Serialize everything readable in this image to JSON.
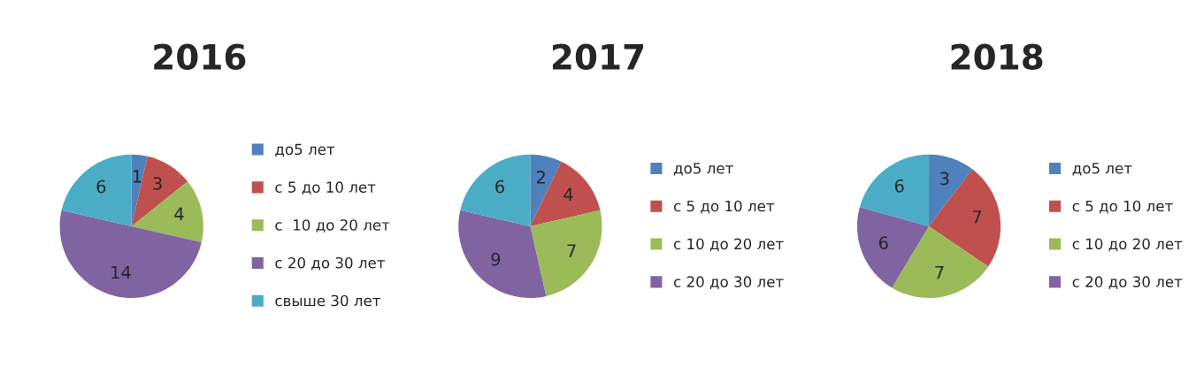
{
  "chart_data": [
    {
      "type": "pie",
      "title": "2016",
      "categories": [
        "до5 лет",
        "с 5 до 10 лет",
        "с  10 до 20 лет",
        "с 20 до 30 лет",
        "свыше 30 лет"
      ],
      "values": [
        1,
        3,
        4,
        14,
        6
      ],
      "colors": [
        "#4f81bd",
        "#c0504d",
        "#9bbb59",
        "#8064a2",
        "#4bacc6"
      ],
      "data_labels": true,
      "legend": "right"
    },
    {
      "type": "pie",
      "title": "2017",
      "categories": [
        "до5 лет",
        "с 5 до 10 лет",
        "с 10 до 20 лет",
        "с 20 до 30 лет",
        null
      ],
      "values": [
        2,
        4,
        7,
        9,
        6
      ],
      "colors": [
        "#4f81bd",
        "#c0504d",
        "#9bbb59",
        "#8064a2",
        "#4bacc6"
      ],
      "data_labels": true,
      "legend": "right"
    },
    {
      "type": "pie",
      "title": "2018",
      "categories": [
        "до5 лет",
        "с 5 до 10 лет",
        "с 10 до 20 лет",
        "с 20 до 30 лет",
        null
      ],
      "values": [
        3,
        7,
        7,
        6,
        6
      ],
      "colors": [
        "#4f81bd",
        "#c0504d",
        "#9bbb59",
        "#8064a2",
        "#4bacc6"
      ],
      "data_labels": true,
      "legend": "right"
    }
  ]
}
